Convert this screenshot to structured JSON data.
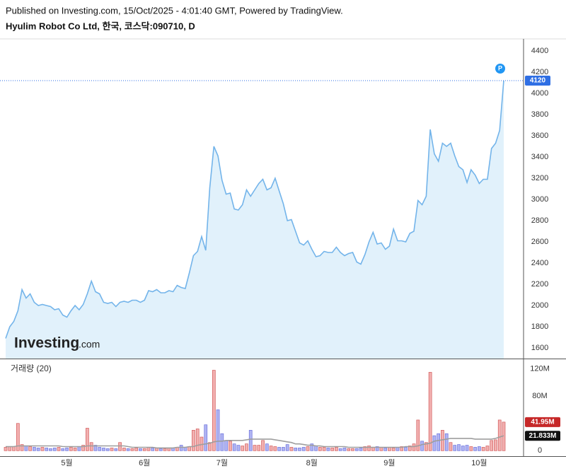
{
  "header": {
    "published": "Published on Investing.com, 15/Oct/2025 - 4:01:40 GMT, Powered by TradingView.",
    "symbol": "Hyulim Robot Co Ltd, 한국, 코스닥:090710, D"
  },
  "chart_data": [
    {
      "type": "area",
      "logo": [
        "Investing",
        ".com"
      ],
      "color": "#73b4ea",
      "fill": "#e1f1fb",
      "badge_color": "#2f6fe4",
      "values": [
        1690,
        1800,
        1850,
        1950,
        2150,
        2070,
        2110,
        2030,
        2000,
        2010,
        2000,
        1990,
        1960,
        1970,
        1910,
        1890,
        1950,
        2000,
        1960,
        2010,
        2110,
        2230,
        2130,
        2110,
        2030,
        2020,
        2030,
        1990,
        2030,
        2040,
        2030,
        2050,
        2050,
        2030,
        2050,
        2140,
        2130,
        2150,
        2120,
        2120,
        2140,
        2130,
        2190,
        2170,
        2160,
        2310,
        2470,
        2510,
        2650,
        2520,
        3110,
        3500,
        3410,
        3180,
        3050,
        3060,
        2910,
        2900,
        2950,
        3090,
        3030,
        3090,
        3150,
        3190,
        3090,
        3110,
        3200,
        3080,
        2960,
        2800,
        2810,
        2700,
        2590,
        2570,
        2610,
        2530,
        2460,
        2470,
        2510,
        2500,
        2500,
        2550,
        2500,
        2470,
        2490,
        2500,
        2410,
        2390,
        2480,
        2600,
        2690,
        2580,
        2590,
        2530,
        2560,
        2720,
        2610,
        2610,
        2600,
        2680,
        2700,
        2990,
        2950,
        3030,
        3660,
        3430,
        3360,
        3530,
        3500,
        3530,
        3410,
        3310,
        3280,
        3160,
        3280,
        3230,
        3150,
        3190,
        3190,
        3480,
        3530,
        3650,
        4120
      ],
      "ylim": [
        1500,
        4513
      ],
      "yticks": [
        1600,
        1800,
        2000,
        2200,
        2400,
        2600,
        2800,
        3000,
        3200,
        3400,
        3600,
        3800,
        4000,
        4200,
        4400
      ]
    },
    {
      "type": "bar",
      "title": "거래량 (20)",
      "categories": [
        null,
        null,
        null,
        null,
        null,
        null,
        null,
        null,
        null,
        null,
        null,
        null,
        null,
        null,
        null,
        "5월",
        null,
        null,
        null,
        null,
        null,
        null,
        null,
        null,
        null,
        null,
        null,
        null,
        null,
        null,
        null,
        null,
        null,
        null,
        "6월",
        null,
        null,
        null,
        null,
        null,
        null,
        null,
        null,
        null,
        null,
        null,
        null,
        null,
        null,
        null,
        null,
        null,
        null,
        "7월",
        null,
        null,
        null,
        null,
        null,
        null,
        null,
        null,
        null,
        null,
        null,
        null,
        null,
        null,
        null,
        null,
        null,
        null,
        null,
        null,
        null,
        "8월",
        null,
        null,
        null,
        null,
        null,
        null,
        null,
        null,
        null,
        null,
        null,
        null,
        null,
        null,
        null,
        null,
        null,
        null,
        "9월",
        null,
        null,
        null,
        null,
        null,
        null,
        null,
        null,
        null,
        null,
        null,
        null,
        null,
        null,
        null,
        null,
        null,
        null,
        null,
        null,
        null,
        "10월",
        null,
        null,
        null,
        null,
        null,
        null
      ],
      "series": [
        {
          "up_color": "#f2b0b0",
          "up_edge": "#d25a5a",
          "down_color": "#b0b4f2",
          "down_edge": "#6a70dc",
          "badge_color": "#c62828",
          "values": [
            5,
            6,
            6,
            40,
            9,
            7,
            6,
            5,
            4,
            5,
            4,
            3,
            4,
            5,
            3,
            4,
            5,
            4,
            6,
            8,
            33,
            12,
            8,
            5,
            4,
            3,
            4,
            3,
            12,
            4,
            3,
            3,
            4,
            3,
            3,
            5,
            4,
            4,
            3,
            3,
            4,
            4,
            5,
            8,
            5,
            6,
            30,
            32,
            20,
            38,
            12,
            118,
            60,
            25,
            15,
            14,
            10,
            8,
            7,
            10,
            30,
            8,
            8,
            15,
            10,
            7,
            6,
            5,
            5,
            9,
            5,
            4,
            4,
            5,
            6,
            10,
            7,
            5,
            5,
            4,
            4,
            5,
            3,
            4,
            3,
            3,
            3,
            4,
            6,
            7,
            5,
            6,
            5,
            4,
            5,
            4,
            5,
            6,
            5,
            7,
            10,
            45,
            14,
            12,
            115,
            22,
            25,
            30,
            25,
            12,
            8,
            9,
            7,
            8,
            6,
            5,
            6,
            5,
            7,
            15,
            16,
            45,
            41.95
          ],
          "value_labels": [
            null,
            null,
            null,
            null,
            null,
            null,
            null,
            null,
            null,
            null,
            null,
            null,
            null,
            null,
            null,
            null,
            null,
            null,
            null,
            null,
            null,
            null,
            null,
            null,
            null,
            null,
            null,
            null,
            null,
            null,
            null,
            null,
            null,
            null,
            null,
            null,
            null,
            null,
            null,
            null,
            null,
            null,
            null,
            null,
            null,
            null,
            null,
            null,
            null,
            null,
            null,
            null,
            null,
            null,
            null,
            null,
            null,
            null,
            null,
            null,
            null,
            null,
            null,
            null,
            null,
            null,
            null,
            null,
            null,
            null,
            null,
            null,
            null,
            null,
            null,
            null,
            null,
            null,
            null,
            null,
            null,
            null,
            null,
            null,
            null,
            null,
            null,
            null,
            null,
            null,
            null,
            null,
            null,
            null,
            null,
            null,
            null,
            null,
            null,
            null,
            null,
            null,
            null,
            null,
            null,
            null,
            null,
            null,
            null,
            null,
            null,
            null,
            null,
            null,
            null,
            null,
            null,
            null,
            null,
            null,
            null,
            null,
            "41.95M"
          ]
        },
        {
          "type": "line",
          "color": "#9e9e9e",
          "badge_color": "#111111",
          "values": [
            6,
            6,
            6,
            7,
            7,
            7,
            7,
            7,
            7,
            7,
            7,
            7,
            7,
            7,
            6,
            6,
            6,
            6,
            6,
            6,
            7,
            7,
            7,
            7,
            7,
            7,
            7,
            7,
            7,
            7,
            6,
            5,
            5,
            5,
            5,
            5,
            5,
            4,
            4,
            4,
            4,
            4,
            5,
            5,
            5,
            6,
            6,
            8,
            9,
            10,
            11,
            13,
            14,
            14,
            15,
            15,
            15,
            15,
            15,
            16,
            17,
            17,
            17,
            17,
            17,
            17,
            16,
            15,
            14,
            13,
            12,
            10,
            10,
            9,
            8,
            8,
            7,
            7,
            6,
            6,
            6,
            6,
            6,
            6,
            5,
            5,
            5,
            5,
            5,
            5,
            5,
            5,
            5,
            5,
            5,
            5,
            5,
            5,
            6,
            6,
            6,
            7,
            9,
            10,
            11,
            14,
            15,
            16,
            17,
            18,
            18,
            18,
            18,
            18,
            18,
            17,
            17,
            17,
            17,
            17,
            18,
            20,
            21.833
          ],
          "value_labels": [
            null,
            null,
            null,
            null,
            null,
            null,
            null,
            null,
            null,
            null,
            null,
            null,
            null,
            null,
            null,
            null,
            null,
            null,
            null,
            null,
            null,
            null,
            null,
            null,
            null,
            null,
            null,
            null,
            null,
            null,
            null,
            null,
            null,
            null,
            null,
            null,
            null,
            null,
            null,
            null,
            null,
            null,
            null,
            null,
            null,
            null,
            null,
            null,
            null,
            null,
            null,
            null,
            null,
            null,
            null,
            null,
            null,
            null,
            null,
            null,
            null,
            null,
            null,
            null,
            null,
            null,
            null,
            null,
            null,
            null,
            null,
            null,
            null,
            null,
            null,
            null,
            null,
            null,
            null,
            null,
            null,
            null,
            null,
            null,
            null,
            null,
            null,
            null,
            null,
            null,
            null,
            null,
            null,
            null,
            null,
            null,
            null,
            null,
            null,
            null,
            null,
            null,
            null,
            null,
            null,
            null,
            null,
            null,
            null,
            null,
            null,
            null,
            null,
            null,
            null,
            null,
            null,
            null,
            null,
            null,
            null,
            null,
            "21.833M"
          ]
        }
      ],
      "ylim": [
        -8,
        130
      ],
      "yticks": [
        0,
        {
          "value": 80,
          "label": "80M"
        },
        {
          "value": 120,
          "label": "120M"
        }
      ]
    }
  ]
}
